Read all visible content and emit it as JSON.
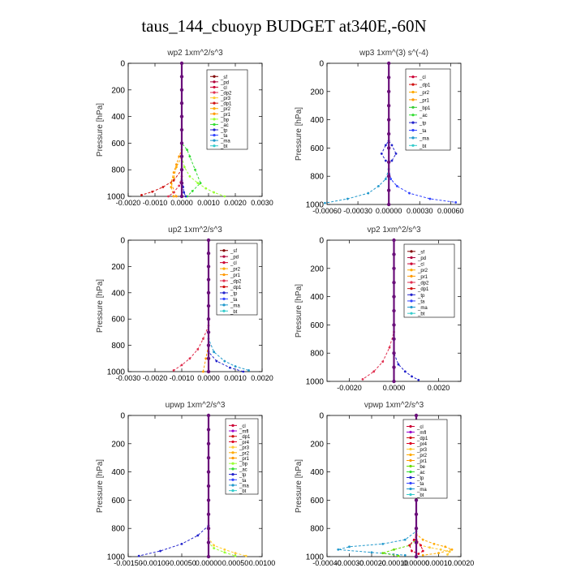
{
  "figure": {
    "title": "taus_144_cbuoyp  BUDGET at340E,-60N"
  },
  "colors": {
    "sf": "#800000",
    "pd": "#b0003a",
    "cl": "#cc0033",
    "dp1": "#d01010",
    "dp2": "#e03050",
    "pr1": "#ff9900",
    "pr2": "#ffaa00",
    "pr3": "#ffcc33",
    "pr4": "#dd0022",
    "bp": "#99ff33",
    "bp1": "#33cc33",
    "ac": "#33dd33",
    "tp": "#2222cc",
    "ta": "#3344ff",
    "ma": "#2299cc",
    "bt": "#33cccc",
    "mfl": "#9900cc",
    "be": "#66dd00",
    "total": "#6a0f7a"
  },
  "chart_data": [
    {
      "id": "wp2",
      "type": "line",
      "title": "wp2   1xm^2/s^3",
      "ylabel": "Pressure [hPa]",
      "xlim": [
        -0.002,
        0.003
      ],
      "ylim": [
        1000,
        0
      ],
      "xticks": [
        -0.002,
        -0.001,
        0.0,
        0.001,
        0.002,
        0.003
      ],
      "xtick_labels": [
        "-0.0020",
        "-0.0010",
        "0.0000",
        "0.0010",
        "0.0020",
        "0.0030"
      ],
      "yticks": [
        0,
        200,
        400,
        600,
        800,
        1000
      ],
      "legend": [
        "_sf",
        "_pd",
        "_cl",
        "_dp2",
        "_pr3",
        "_dp1",
        "_pr2",
        "_pr1",
        "_bp",
        "_ac",
        "_tp",
        "_ta",
        "_ma",
        "_bt"
      ],
      "series": [
        {
          "key": "ac",
          "x": [
            0,
            0,
            0.0002,
            0.0003,
            0.0005,
            0.0007,
            0.0004,
            0.0002
          ],
          "y": [
            0,
            600,
            650,
            700,
            800,
            900,
            960,
            1000
          ]
        },
        {
          "key": "bp",
          "x": [
            0,
            0,
            0.0001,
            0.0003,
            0.0006,
            0.0009,
            0.0012,
            0.0016
          ],
          "y": [
            0,
            700,
            780,
            850,
            900,
            940,
            970,
            1000
          ]
        },
        {
          "key": "pr1",
          "x": [
            0,
            0,
            -0.0001,
            -0.0002,
            -0.0003,
            -0.0004,
            -0.0002
          ],
          "y": [
            0,
            650,
            700,
            760,
            820,
            900,
            1000
          ]
        },
        {
          "key": "pr2",
          "x": [
            0,
            0,
            -0.0002,
            -0.0003,
            -0.0004,
            -0.0003
          ],
          "y": [
            0,
            700,
            780,
            860,
            930,
            1000
          ]
        },
        {
          "key": "dp1",
          "x": [
            0,
            0,
            -0.0003,
            -0.0007,
            -0.0011,
            -0.0015
          ],
          "y": [
            0,
            800,
            880,
            930,
            965,
            990
          ]
        },
        {
          "key": "dp2",
          "x": [
            0,
            0,
            -0.0001,
            -0.0003,
            -0.0005
          ],
          "y": [
            0,
            850,
            920,
            970,
            1000
          ]
        },
        {
          "key": "tp",
          "x": [
            0,
            0,
            5e-05,
            8e-05,
            0.00015
          ],
          "y": [
            0,
            880,
            930,
            970,
            1000
          ]
        },
        {
          "key": "total",
          "x": [
            0,
            0,
            0,
            0,
            0,
            0,
            0,
            0,
            0,
            0,
            0
          ],
          "y": [
            0,
            100,
            200,
            300,
            400,
            500,
            600,
            700,
            800,
            900,
            1000
          ]
        }
      ]
    },
    {
      "id": "wp3",
      "type": "line",
      "title": "wp3   1xm^(3) s^(-4)",
      "ylabel": "Pressure [hPa]",
      "xlim": [
        -0.0006,
        0.0007
      ],
      "ylim": [
        1000,
        0
      ],
      "xticks": [
        -0.0006,
        -0.0003,
        0.0,
        0.0003,
        0.0006
      ],
      "xtick_labels": [
        "-0.00060",
        "-0.00030",
        "0.00000",
        "0.00030",
        "0.00060"
      ],
      "yticks": [
        0,
        200,
        400,
        600,
        800,
        1000
      ],
      "legend": [
        "_cl",
        "_dp1",
        "_pr2",
        "_pr1",
        "_bp1",
        "_ac",
        "_tp",
        "_ta",
        "_ma",
        "_bt"
      ],
      "series": [
        {
          "key": "ta",
          "x": [
            0,
            0,
            2e-05,
            8e-05,
            0.0002,
            0.0004,
            0.00065
          ],
          "y": [
            0,
            750,
            820,
            870,
            920,
            960,
            985
          ]
        },
        {
          "key": "ma",
          "x": [
            0,
            0,
            -3e-05,
            -0.0001,
            -0.0002,
            -0.0004,
            -0.00062
          ],
          "y": [
            0,
            750,
            820,
            870,
            920,
            960,
            990
          ]
        },
        {
          "key": "tp",
          "x": [
            0,
            3e-05,
            7e-05,
            3e-05,
            0,
            -3e-05,
            -7e-05,
            -3e-05,
            0
          ],
          "y": [
            550,
            580,
            640,
            690,
            700,
            690,
            640,
            580,
            550
          ]
        },
        {
          "key": "total",
          "x": [
            0,
            0,
            0,
            0,
            0,
            0,
            0,
            0,
            0,
            0,
            0
          ],
          "y": [
            0,
            100,
            200,
            300,
            400,
            500,
            600,
            700,
            800,
            900,
            1000
          ]
        }
      ]
    },
    {
      "id": "up2",
      "type": "line",
      "title": "up2   1xm^2/s^3",
      "ylabel": "Pressure [hPa]",
      "xlim": [
        -0.003,
        0.002
      ],
      "ylim": [
        1000,
        0
      ],
      "xticks": [
        -0.003,
        -0.002,
        -0.001,
        0.0,
        0.001,
        0.002
      ],
      "xtick_labels": [
        "-0.0030",
        "-0.0020",
        "-0.0010",
        "0.0000",
        "0.0010",
        "0.0020"
      ],
      "yticks": [
        0,
        200,
        400,
        600,
        800,
        1000
      ],
      "legend": [
        "_sf",
        "_pd",
        "_cl",
        "_pr2",
        "_pr1",
        "_dp2",
        "_dp1",
        "_tp",
        "_ta",
        "_ma",
        "_bt"
      ],
      "series": [
        {
          "key": "dp2",
          "x": [
            0,
            0,
            -0.0002,
            -0.0004,
            -0.0007,
            -0.001,
            -0.0013
          ],
          "y": [
            0,
            650,
            750,
            830,
            900,
            950,
            990
          ]
        },
        {
          "key": "ma",
          "x": [
            0,
            0,
            0.0002,
            0.0006,
            0.001,
            0.0015
          ],
          "y": [
            0,
            750,
            850,
            920,
            960,
            990
          ]
        },
        {
          "key": "tp",
          "x": [
            0,
            0,
            0.0003,
            0.0008,
            0.0013
          ],
          "y": [
            0,
            850,
            920,
            970,
            1000
          ]
        },
        {
          "key": "pr1",
          "x": [
            0,
            0,
            -0.0001,
            -0.0002
          ],
          "y": [
            0,
            800,
            900,
            1000
          ]
        },
        {
          "key": "total",
          "x": [
            0,
            0,
            0,
            0,
            0,
            0,
            0,
            0,
            0,
            0,
            0
          ],
          "y": [
            0,
            100,
            200,
            300,
            400,
            500,
            600,
            700,
            800,
            900,
            1000
          ]
        }
      ]
    },
    {
      "id": "vp2",
      "type": "line",
      "title": "vp2   1xm^2/s^3",
      "ylabel": "Pressure [hPa]",
      "xlim": [
        -0.003,
        0.003
      ],
      "ylim": [
        1000,
        0
      ],
      "xticks": [
        -0.002,
        0.0,
        0.002
      ],
      "xtick_labels": [
        "-0.0020",
        "0.0000",
        "0.0020"
      ],
      "yticks": [
        0,
        200,
        400,
        600,
        800,
        1000
      ],
      "legend": [
        "_sf",
        "_pd",
        "_cl",
        "_pr2",
        "_pr1",
        "_dp2",
        "_dp1",
        "_tp",
        "_ta",
        "_ma",
        "_bt"
      ],
      "series": [
        {
          "key": "dp2",
          "x": [
            0,
            0,
            -0.0002,
            -0.0005,
            -0.0009,
            -0.0014
          ],
          "y": [
            0,
            650,
            760,
            860,
            930,
            985
          ]
        },
        {
          "key": "tp",
          "x": [
            0,
            0,
            0.0002,
            0.0005,
            0.0008,
            0.0011
          ],
          "y": [
            0,
            800,
            880,
            930,
            965,
            990
          ]
        },
        {
          "key": "total",
          "x": [
            0,
            0,
            0,
            0,
            0,
            0,
            0,
            0,
            0,
            0,
            0
          ],
          "y": [
            0,
            100,
            200,
            300,
            400,
            500,
            600,
            700,
            800,
            900,
            1000
          ]
        }
      ]
    },
    {
      "id": "upwp",
      "type": "line",
      "title": "upwp   1xm^2/s^3",
      "ylabel": "Pressure [hPa]",
      "xlim": [
        -0.0015,
        0.001
      ],
      "ylim": [
        1000,
        0
      ],
      "xticks": [
        -0.0015,
        -0.001,
        -0.0005,
        0.0,
        0.0005,
        0.001
      ],
      "xtick_labels": [
        "-0.00150",
        "-0.00100",
        "-0.00050",
        "0.00000",
        "0.00050",
        "0.00100"
      ],
      "yticks": [
        0,
        200,
        400,
        600,
        800,
        1000
      ],
      "legend": [
        "_cl",
        "_mfl",
        "_dp1",
        "_pr4",
        "_pr3",
        "_pr2",
        "_pr1",
        "_bp",
        "_ac",
        "_tp",
        "_ta",
        "_ma",
        "_bt"
      ],
      "series": [
        {
          "key": "tp",
          "x": [
            0,
            0,
            -0.0002,
            -0.0005,
            -0.0009,
            -0.0013
          ],
          "y": [
            0,
            780,
            850,
            910,
            960,
            995
          ]
        },
        {
          "key": "pr3",
          "x": [
            0,
            0,
            0.0001,
            0.0003,
            0.0005,
            0.0007
          ],
          "y": [
            0,
            870,
            920,
            950,
            975,
            995
          ]
        },
        {
          "key": "bp",
          "x": [
            0,
            0,
            0.0001,
            0.0003,
            0.0005
          ],
          "y": [
            0,
            900,
            940,
            970,
            995
          ]
        },
        {
          "key": "total",
          "x": [
            0,
            0,
            0,
            0,
            0,
            0,
            0,
            0,
            0,
            0,
            0
          ],
          "y": [
            0,
            100,
            200,
            300,
            400,
            500,
            600,
            700,
            800,
            900,
            1000
          ]
        }
      ]
    },
    {
      "id": "vpwp",
      "type": "line",
      "title": "vpwp   1xm^2/s^3",
      "ylabel": "Pressure [hPa]",
      "xlim": [
        -0.0004,
        0.0002
      ],
      "ylim": [
        1000,
        0
      ],
      "xticks": [
        -0.0004,
        -0.0003,
        -0.0002,
        -0.0001,
        0.0,
        0.0001,
        0.0002
      ],
      "xtick_labels": [
        "-0.00040",
        "-0.00030",
        "-0.00020",
        "-0.00010",
        "0.00000",
        "0.00010",
        "0.00020"
      ],
      "yticks": [
        0,
        200,
        400,
        600,
        800,
        1000
      ],
      "legend": [
        "_cl",
        "_mfl",
        "_dp1",
        "_pr4",
        "_pr3",
        "_pr2",
        "_pr1",
        "_be",
        "_ac",
        "_tp",
        "_ta",
        "_ma",
        "_bt"
      ],
      "series": [
        {
          "key": "ma",
          "x": [
            0,
            0,
            -5e-05,
            -0.00015,
            -0.0003,
            -0.00035,
            -0.0002,
            -5e-05
          ],
          "y": [
            0,
            820,
            880,
            910,
            930,
            950,
            970,
            990
          ]
        },
        {
          "key": "pr2",
          "x": [
            0,
            0,
            3e-05,
            8e-05,
            0.00013,
            0.00016,
            0.0001,
            3e-05
          ],
          "y": [
            0,
            840,
            880,
            910,
            930,
            950,
            975,
            990
          ]
        },
        {
          "key": "pr3",
          "x": [
            0,
            2e-05,
            6e-05,
            0.00011,
            0.00015,
            0.00014
          ],
          "y": [
            900,
            920,
            935,
            950,
            965,
            985
          ]
        },
        {
          "key": "be",
          "x": [
            0,
            0,
            -3e-05,
            -0.0001,
            -0.00015,
            -8e-05
          ],
          "y": [
            0,
            880,
            920,
            950,
            975,
            995
          ]
        },
        {
          "key": "pr4",
          "x": [
            0,
            -1e-05,
            -3e-05,
            -2e-05,
            1e-05,
            3e-05,
            2e-05,
            0
          ],
          "y": [
            850,
            880,
            920,
            960,
            980,
            960,
            920,
            880
          ]
        },
        {
          "key": "total",
          "x": [
            0,
            0,
            0,
            0,
            0,
            0,
            0,
            0,
            0,
            0,
            0
          ],
          "y": [
            0,
            100,
            200,
            300,
            400,
            500,
            600,
            700,
            800,
            900,
            1000
          ]
        }
      ]
    }
  ]
}
